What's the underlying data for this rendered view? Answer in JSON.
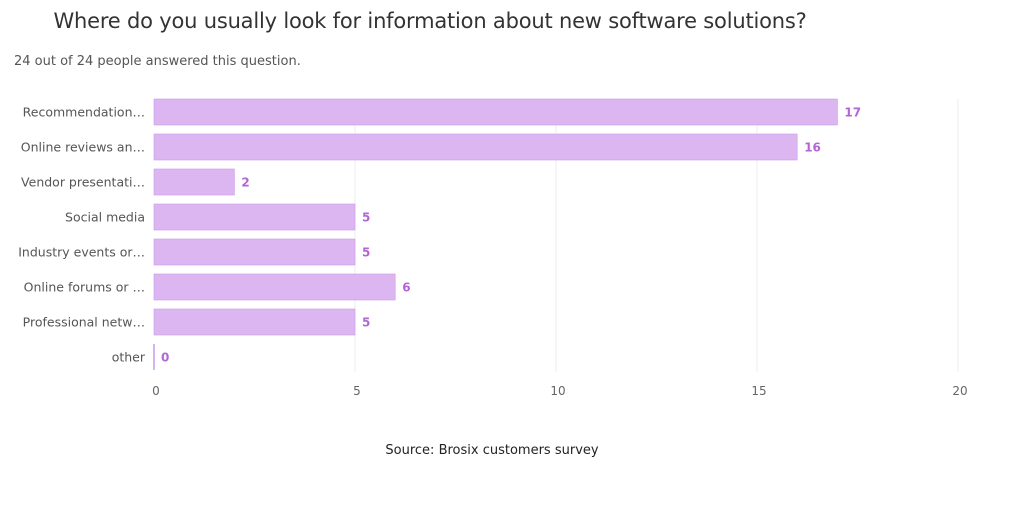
{
  "header": {
    "title": "Where do you usually look for information about new software solutions?",
    "subtitle": "24 out of 24 people answered this question."
  },
  "footer": {
    "source": "Source: Brosix customers survey"
  },
  "colors": {
    "bar_fill": "#dcb6f0",
    "bar_edge": "#c99ae6",
    "value_label": "#b266d6",
    "gridline": "#eeeeee"
  },
  "chart_data": {
    "type": "bar",
    "orientation": "horizontal",
    "title": "Where do you usually look for information about new software solutions?",
    "subtitle": "24 out of 24 people answered this question.",
    "xlabel": "",
    "ylabel": "",
    "categories": [
      "Recommendation…",
      "Online reviews an…",
      "Vendor presentati…",
      "Social media",
      "Industry events or…",
      "Online forums or …",
      "Professional netw…",
      "other"
    ],
    "values": [
      17,
      16,
      2,
      5,
      5,
      6,
      5,
      0
    ],
    "xlim": [
      0,
      20
    ],
    "xticks": [
      0,
      5,
      10,
      15,
      20
    ],
    "grid": true,
    "data_labels": true,
    "legend": "none",
    "source": "Source: Brosix customers survey"
  }
}
